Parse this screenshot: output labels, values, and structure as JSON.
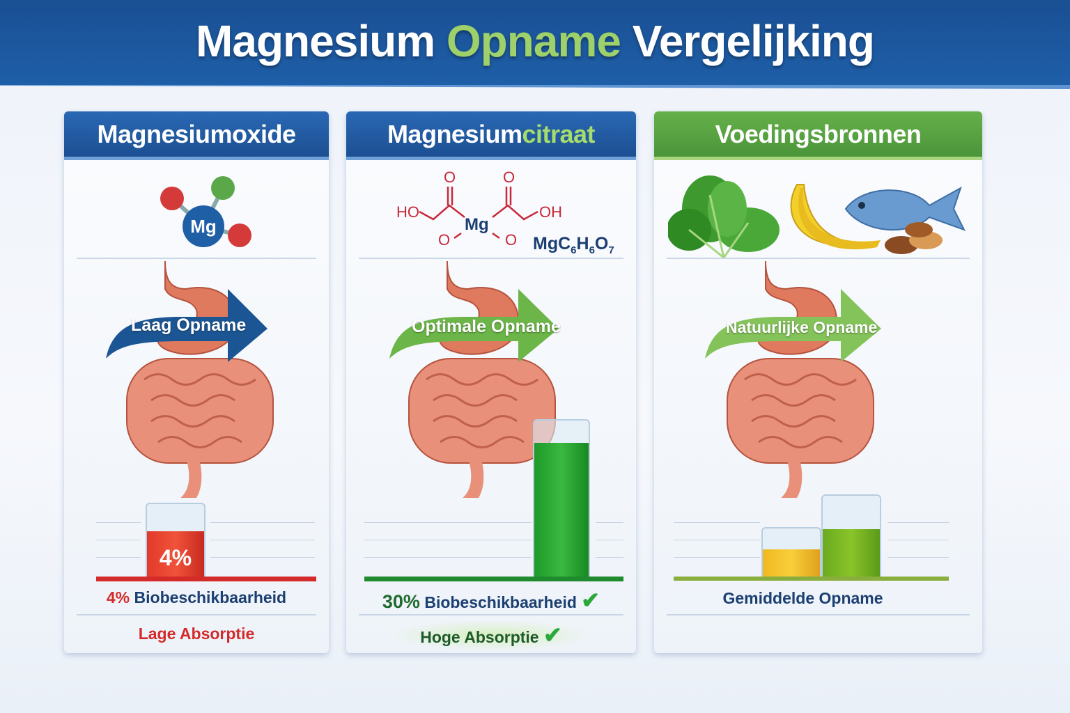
{
  "header": {
    "title_part1": "Magnesium",
    "title_part2": "Opname",
    "title_part3": "Vergelijking"
  },
  "panels": [
    {
      "title": "Magnesiumoxide",
      "molecule_label": "Mg",
      "arrow_label": "Laag Opname",
      "bar_value_label": "4%",
      "bioavailability_percent": 4,
      "caption_percent": "4%",
      "caption_text": "Biobeschikbaarheid",
      "footer": "Lage Absorptie",
      "accent": "#d42a2a"
    },
    {
      "title_part1": "Magnesium",
      "title_part2": "citraat",
      "structure": {
        "o_top_left": "O",
        "o_top_right": "O",
        "ho": "HO",
        "oh": "OH",
        "mg": "Mg",
        "o_bottom_left": "O",
        "o_bottom_right": "O"
      },
      "formula": {
        "mg": "MgC",
        "s1": "6",
        "h": "H",
        "s2": "6",
        "o": "O",
        "s3": "7"
      },
      "arrow_label": "Optimale Opname",
      "bioavailability_percent": 30,
      "caption_percent": "30%",
      "caption_text": "Biobeschikbaarheid",
      "footer": "Hoge Absorptie",
      "accent": "#1f8a2e"
    },
    {
      "title": "Voedingsbronnen",
      "arrow_label": "Natuurlijke Opname",
      "caption_text": "Gemiddelde Opname",
      "accent": "#7aa83a"
    }
  ]
}
